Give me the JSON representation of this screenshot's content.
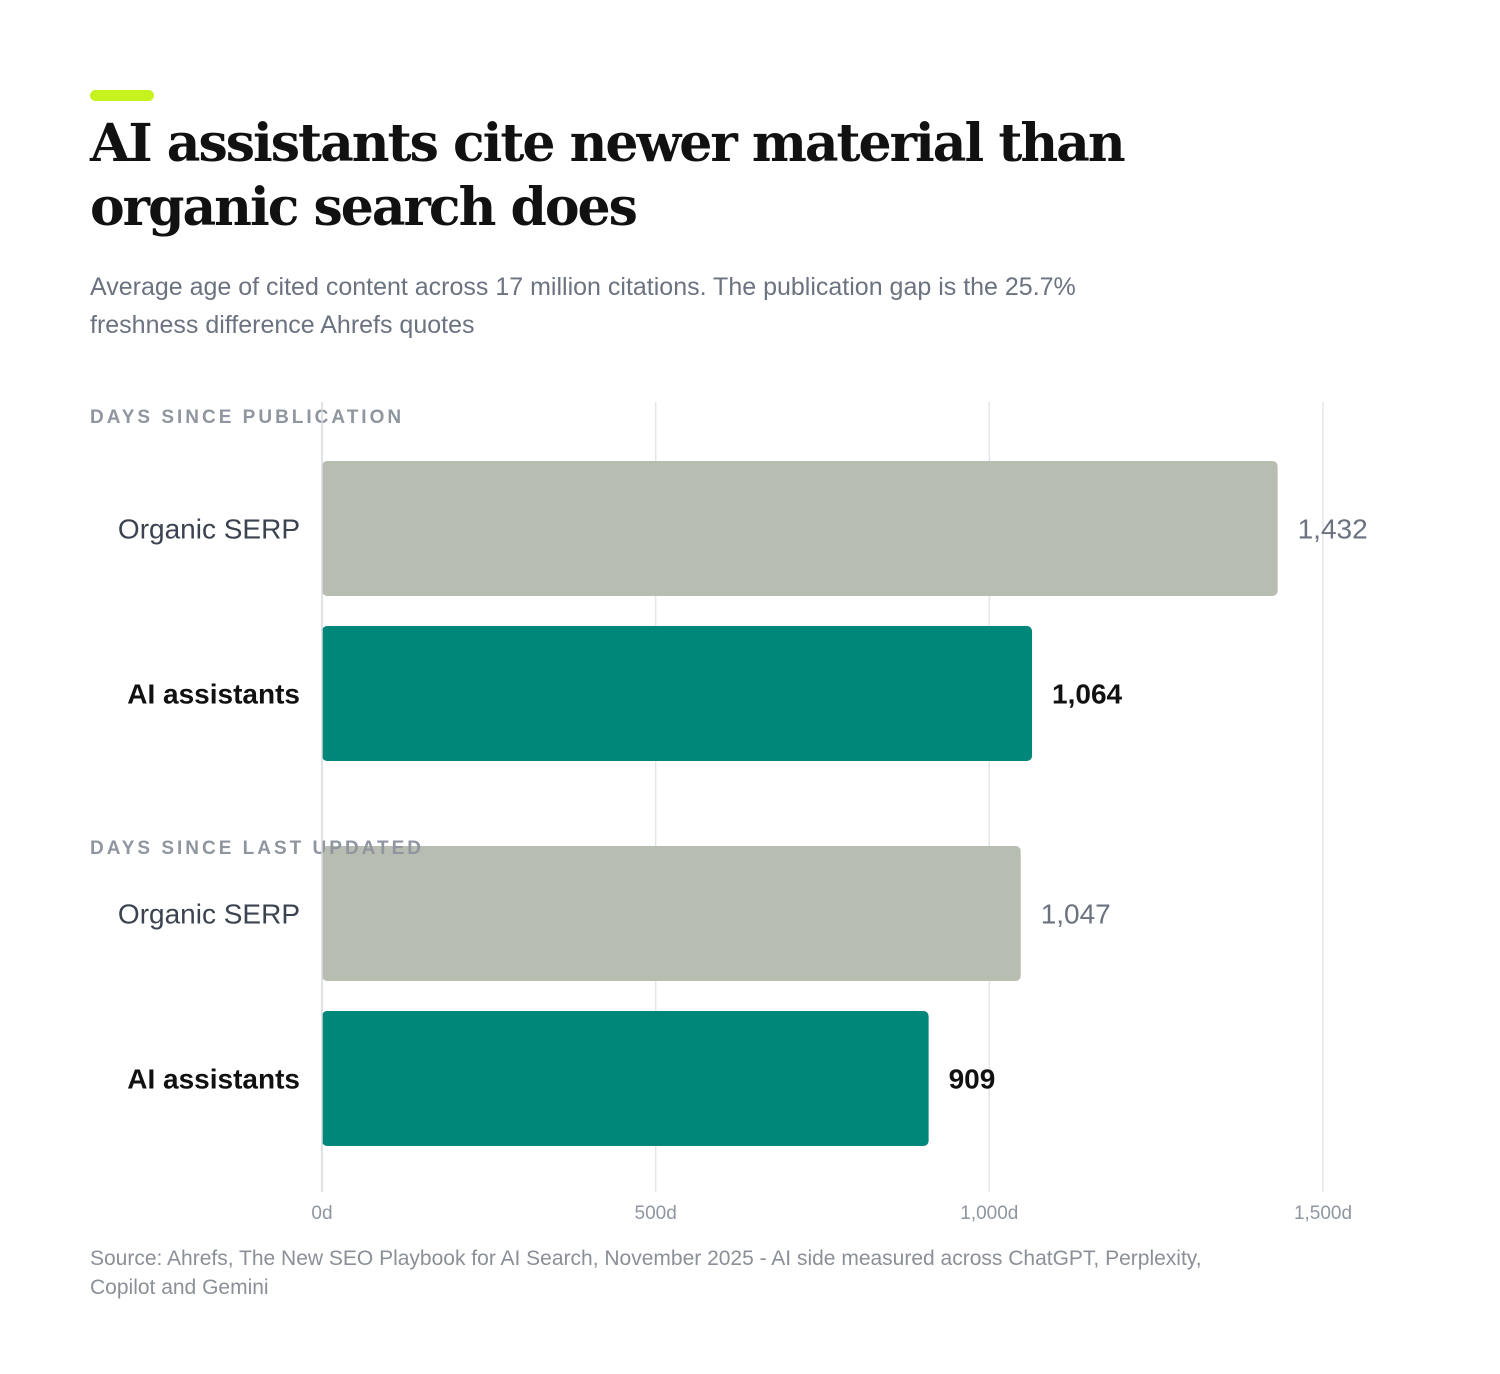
{
  "colors": {
    "accent": "#c6f21e",
    "serp": "#b8bdb1",
    "ai": "#00877a",
    "grid": "#e3e5e8"
  },
  "header": {
    "title": "AI assistants cite newer material than organic search does",
    "subtitle": "Average age of cited content across 17 million citations. The publication gap is the 25.7% freshness difference Ahrefs quotes"
  },
  "footer": {
    "source": "Source: Ahrefs, The New SEO Playbook for AI Search, November 2025 - AI side measured across ChatGPT, Perplexity, Copilot and Gemini"
  },
  "chart_data": {
    "type": "bar",
    "orientation": "horizontal",
    "xlim": [
      0,
      1500
    ],
    "ticks": [
      {
        "value": 0,
        "label": "0d"
      },
      {
        "value": 500,
        "label": "500d"
      },
      {
        "value": 1000,
        "label": "1,000d"
      },
      {
        "value": 1500,
        "label": "1,500d"
      }
    ],
    "grid": true,
    "groups": [
      {
        "label": "DAYS SINCE PUBLICATION",
        "bars": [
          {
            "category": "Organic SERP",
            "value": 1432,
            "value_label": "1,432",
            "series": "serp"
          },
          {
            "category": "AI assistants",
            "value": 1064,
            "value_label": "1,064",
            "series": "ai"
          }
        ]
      },
      {
        "label": "DAYS SINCE LAST UPDATED",
        "bars": [
          {
            "category": "Organic SERP",
            "value": 1047,
            "value_label": "1,047",
            "series": "serp"
          },
          {
            "category": "AI assistants",
            "value": 909,
            "value_label": "909",
            "series": "ai"
          }
        ]
      }
    ]
  }
}
